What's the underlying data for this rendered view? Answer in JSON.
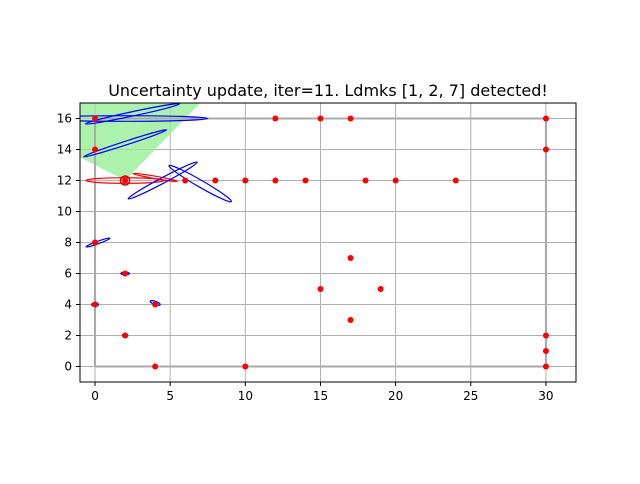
{
  "chart_data": {
    "type": "scatter",
    "title": "Uncertainty update, iter=11. Ldmks [1, 2, 7] detected!",
    "xlabel": "",
    "ylabel": "",
    "xlim": [
      -1,
      32
    ],
    "ylim": [
      -1,
      17
    ],
    "xticks": [
      0,
      5,
      10,
      15,
      20,
      25,
      30
    ],
    "yticks": [
      0,
      2,
      4,
      6,
      8,
      10,
      12,
      14,
      16
    ],
    "grid": true,
    "landmarks": [
      {
        "x": 0,
        "y": 4
      },
      {
        "x": 0,
        "y": 8
      },
      {
        "x": 0,
        "y": 14
      },
      {
        "x": 0,
        "y": 16
      },
      {
        "x": 2,
        "y": 2
      },
      {
        "x": 2,
        "y": 6
      },
      {
        "x": 2,
        "y": 12
      },
      {
        "x": 4,
        "y": 0
      },
      {
        "x": 4,
        "y": 4
      },
      {
        "x": 6,
        "y": 12
      },
      {
        "x": 8,
        "y": 12
      },
      {
        "x": 10,
        "y": 0
      },
      {
        "x": 10,
        "y": 12
      },
      {
        "x": 12,
        "y": 12
      },
      {
        "x": 12,
        "y": 16
      },
      {
        "x": 14,
        "y": 12
      },
      {
        "x": 15,
        "y": 5
      },
      {
        "x": 15,
        "y": 16
      },
      {
        "x": 17,
        "y": 3
      },
      {
        "x": 17,
        "y": 7
      },
      {
        "x": 17,
        "y": 16
      },
      {
        "x": 18,
        "y": 12
      },
      {
        "x": 19,
        "y": 5
      },
      {
        "x": 20,
        "y": 12
      },
      {
        "x": 24,
        "y": 12
      },
      {
        "x": 30,
        "y": 0
      },
      {
        "x": 30,
        "y": 1
      },
      {
        "x": 30,
        "y": 2
      },
      {
        "x": 30,
        "y": 14
      },
      {
        "x": 30,
        "y": 16
      }
    ],
    "true_path": [
      [
        0,
        0
      ],
      [
        30,
        0
      ],
      [
        30,
        16
      ],
      [
        0,
        16
      ],
      [
        0,
        0
      ]
    ],
    "estimated_path": [
      [
        0,
        0
      ],
      [
        30,
        0
      ],
      [
        30,
        16
      ],
      [
        0,
        16
      ],
      [
        0,
        0
      ]
    ],
    "robot_pose": {
      "x": 2,
      "y": 12
    },
    "sensor_fov": [
      [
        -1,
        17
      ],
      [
        7,
        17
      ],
      [
        2,
        12
      ],
      [
        -1,
        13.5
      ]
    ],
    "landmark_ellipses": [
      {
        "cx": 0.0,
        "cy": 4.0,
        "rx": 0.22,
        "ry": 0.12,
        "angle": 0
      },
      {
        "cx": 2.0,
        "cy": 2.0,
        "rx": 0.18,
        "ry": 0.1,
        "angle": 0
      },
      {
        "cx": 2.0,
        "cy": 6.0,
        "rx": 0.28,
        "ry": 0.08,
        "angle": 0
      },
      {
        "cx": 4.0,
        "cy": 4.1,
        "rx": 0.35,
        "ry": 0.1,
        "angle": -20
      },
      {
        "cx": 0.2,
        "cy": 8.0,
        "rx": 0.85,
        "ry": 0.08,
        "angle": 20
      },
      {
        "cx": 4.5,
        "cy": 12.0,
        "rx": 2.6,
        "ry": 0.18,
        "angle": 28
      },
      {
        "cx": 7.0,
        "cy": 11.8,
        "rx": 2.4,
        "ry": 0.22,
        "angle": -30
      },
      {
        "cx": 2.0,
        "cy": 14.4,
        "rx": 2.9,
        "ry": 0.12,
        "angle": 18
      },
      {
        "cx": 2.0,
        "cy": 16.0,
        "rx": 5.5,
        "ry": 0.18,
        "angle": 0
      },
      {
        "cx": 2.5,
        "cy": 16.3,
        "rx": 3.2,
        "ry": 0.14,
        "angle": 12
      }
    ],
    "pose_ellipses": [
      {
        "cx": 2.0,
        "cy": 12.0,
        "rx": 2.6,
        "ry": 0.18,
        "angle": 0
      },
      {
        "cx": 4.0,
        "cy": 12.2,
        "rx": 1.5,
        "ry": 0.08,
        "angle": -10
      }
    ],
    "colors": {
      "landmark": "#ff0000",
      "true_path": "#000000",
      "estimated_path": "#aaaaaa",
      "landmark_ellipse": "#0000ff",
      "pose_ellipse": "#ff0000",
      "sensor_fov": "#90ee90",
      "grid": "#b0b0b0"
    }
  }
}
